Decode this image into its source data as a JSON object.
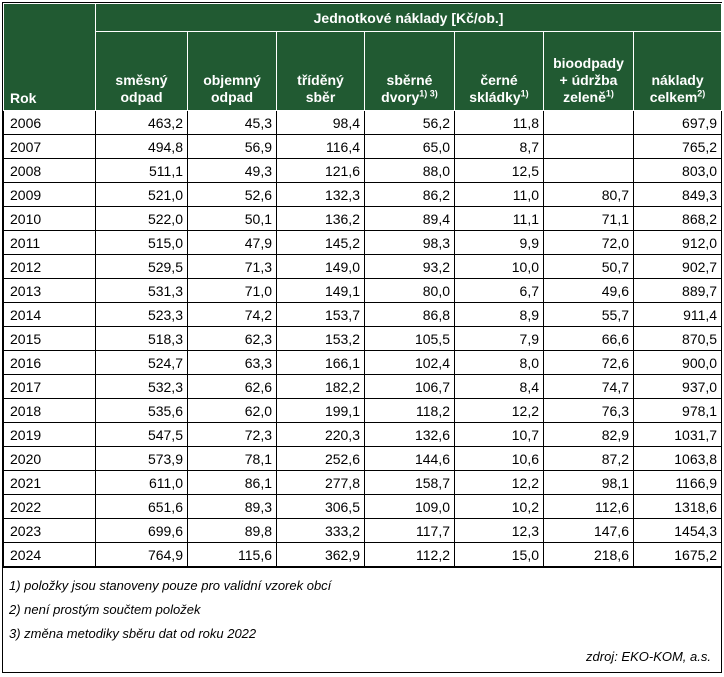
{
  "table": {
    "group_header": "Jednotkové náklady [Kč/ob.]",
    "rok_header": "Rok",
    "columns": [
      {
        "lines": [
          "směsný",
          "odpad"
        ],
        "sup": ""
      },
      {
        "lines": [
          "objemný",
          "odpad"
        ],
        "sup": ""
      },
      {
        "lines": [
          "tříděný",
          "sběr"
        ],
        "sup": ""
      },
      {
        "lines": [
          "sběrné",
          "dvory"
        ],
        "sup": "1) 3)"
      },
      {
        "lines": [
          "černé",
          "skládky"
        ],
        "sup": "1)"
      },
      {
        "lines": [
          "bioodpady",
          "+ údržba",
          "zeleně"
        ],
        "sup": "1)"
      },
      {
        "lines": [
          "náklady",
          "celkem"
        ],
        "sup": "2)"
      }
    ],
    "rows": [
      {
        "year": "2006",
        "values": [
          "463,2",
          "45,3",
          "98,4",
          "56,2",
          "11,8",
          "",
          "697,9"
        ]
      },
      {
        "year": "2007",
        "values": [
          "494,8",
          "56,9",
          "116,4",
          "65,0",
          "8,7",
          "",
          "765,2"
        ]
      },
      {
        "year": "2008",
        "values": [
          "511,1",
          "49,3",
          "121,6",
          "88,0",
          "12,5",
          "",
          "803,0"
        ]
      },
      {
        "year": "2009",
        "values": [
          "521,0",
          "52,6",
          "132,3",
          "86,2",
          "11,0",
          "80,7",
          "849,3"
        ]
      },
      {
        "year": "2010",
        "values": [
          "522,0",
          "50,1",
          "136,2",
          "89,4",
          "11,1",
          "71,1",
          "868,2"
        ]
      },
      {
        "year": "2011",
        "values": [
          "515,0",
          "47,9",
          "145,2",
          "98,3",
          "9,9",
          "72,0",
          "912,0"
        ]
      },
      {
        "year": "2012",
        "values": [
          "529,5",
          "71,3",
          "149,0",
          "93,2",
          "10,0",
          "50,7",
          "902,7"
        ]
      },
      {
        "year": "2013",
        "values": [
          "531,3",
          "71,0",
          "149,1",
          "80,0",
          "6,7",
          "49,6",
          "889,7"
        ]
      },
      {
        "year": "2014",
        "values": [
          "523,3",
          "74,2",
          "153,7",
          "86,8",
          "8,9",
          "55,7",
          "911,4"
        ]
      },
      {
        "year": "2015",
        "values": [
          "518,3",
          "62,3",
          "153,2",
          "105,5",
          "7,9",
          "66,6",
          "870,5"
        ]
      },
      {
        "year": "2016",
        "values": [
          "524,7",
          "63,3",
          "166,1",
          "102,4",
          "8,0",
          "72,6",
          "900,0"
        ]
      },
      {
        "year": "2017",
        "values": [
          "532,3",
          "62,6",
          "182,2",
          "106,7",
          "8,4",
          "74,7",
          "937,0"
        ]
      },
      {
        "year": "2018",
        "values": [
          "535,6",
          "62,0",
          "199,1",
          "118,2",
          "12,2",
          "76,3",
          "978,1"
        ]
      },
      {
        "year": "2019",
        "values": [
          "547,5",
          "72,3",
          "220,3",
          "132,6",
          "10,7",
          "82,9",
          "1031,7"
        ]
      },
      {
        "year": "2020",
        "values": [
          "573,9",
          "78,1",
          "252,6",
          "144,6",
          "10,6",
          "87,2",
          "1063,8"
        ]
      },
      {
        "year": "2021",
        "values": [
          "611,0",
          "86,1",
          "277,8",
          "158,7",
          "12,2",
          "98,1",
          "1166,9"
        ]
      },
      {
        "year": "2022",
        "values": [
          "651,6",
          "89,3",
          "306,5",
          "109,0",
          "10,2",
          "112,6",
          "1318,6"
        ]
      },
      {
        "year": "2023",
        "values": [
          "699,6",
          "89,8",
          "333,2",
          "117,7",
          "12,3",
          "147,6",
          "1454,3"
        ]
      },
      {
        "year": "2024",
        "values": [
          "764,9",
          "115,6",
          "362,9",
          "112,2",
          "15,0",
          "218,6",
          "1675,2"
        ]
      }
    ]
  },
  "notes": [
    "1) položky jsou stanoveny pouze pro validní vzorek obcí",
    "2) není prostým součtem položek",
    "3) změna metodiky sběru dat od roku 2022"
  ],
  "source": "zdroj: EKO-KOM, a.s.",
  "colors": {
    "header_bg": "#215a32",
    "header_text": "#ffffff"
  }
}
